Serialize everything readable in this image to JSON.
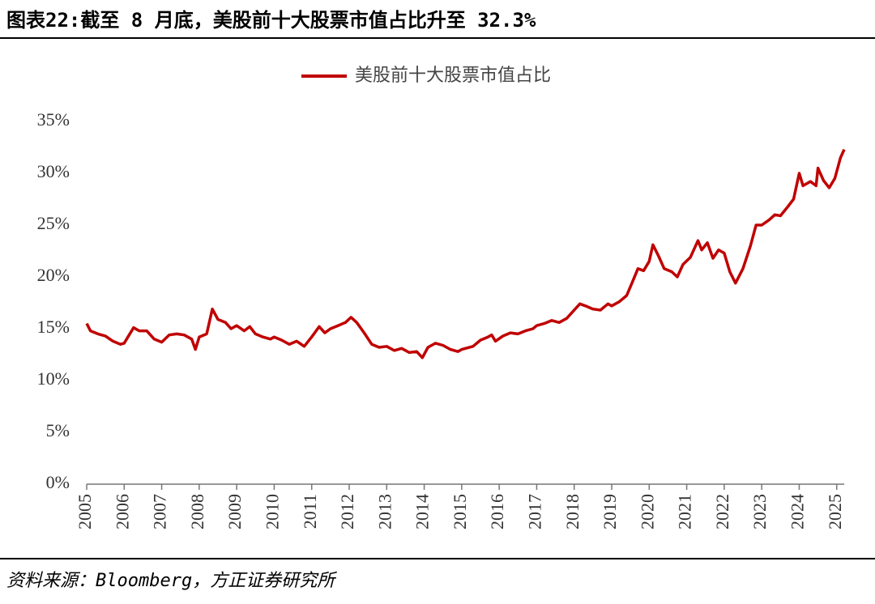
{
  "chart_data": {
    "type": "line",
    "title": "图表22:截至 8 月底，美股前十大股票市值占比升至 32.3%",
    "source": "资料来源：Bloomberg，方正证券研究所",
    "xlim": [
      2005,
      2025.2
    ],
    "xticks": [
      2005,
      2006,
      2007,
      2008,
      2009,
      2010,
      2011,
      2012,
      2013,
      2014,
      2015,
      2016,
      2017,
      2018,
      2019,
      2020,
      2021,
      2022,
      2023,
      2024,
      2025
    ],
    "ylim": [
      0,
      35
    ],
    "yticks": [
      {
        "value": 0,
        "label": "0%"
      },
      {
        "value": 5,
        "label": "5%"
      },
      {
        "value": 10,
        "label": "10%"
      },
      {
        "value": 15,
        "label": "15%"
      },
      {
        "value": 20,
        "label": "20%"
      },
      {
        "value": 25,
        "label": "25%"
      },
      {
        "value": 30,
        "label": "30%"
      },
      {
        "value": 35,
        "label": "35%"
      }
    ],
    "grid": false,
    "legend": "top",
    "x": [
      2005.0,
      2005.1,
      2005.3,
      2005.5,
      2005.7,
      2005.9,
      2006.0,
      2006.1,
      2006.25,
      2006.4,
      2006.6,
      2006.8,
      2007.0,
      2007.2,
      2007.4,
      2007.6,
      2007.8,
      2007.9,
      2008.0,
      2008.2,
      2008.35,
      2008.5,
      2008.7,
      2008.85,
      2009.0,
      2009.2,
      2009.35,
      2009.5,
      2009.7,
      2009.9,
      2010.0,
      2010.2,
      2010.4,
      2010.6,
      2010.8,
      2011.0,
      2011.2,
      2011.35,
      2011.5,
      2011.7,
      2011.9,
      2012.05,
      2012.2,
      2012.4,
      2012.6,
      2012.8,
      2013.0,
      2013.2,
      2013.4,
      2013.6,
      2013.8,
      2013.95,
      2014.1,
      2014.3,
      2014.5,
      2014.7,
      2014.9,
      2015.0,
      2015.3,
      2015.5,
      2015.7,
      2015.8,
      2015.9,
      2016.1,
      2016.3,
      2016.5,
      2016.7,
      2016.9,
      2017.0,
      2017.2,
      2017.4,
      2017.6,
      2017.8,
      2018.0,
      2018.15,
      2018.3,
      2018.5,
      2018.7,
      2018.9,
      2019.0,
      2019.2,
      2019.4,
      2019.55,
      2019.7,
      2019.85,
      2020.0,
      2020.1,
      2020.25,
      2020.4,
      2020.6,
      2020.75,
      2020.9,
      2021.1,
      2021.3,
      2021.4,
      2021.55,
      2021.7,
      2021.85,
      2022.0,
      2022.15,
      2022.3,
      2022.5,
      2022.7,
      2022.85,
      2023.0,
      2023.2,
      2023.35,
      2023.5,
      2023.7,
      2023.85,
      2024.0,
      2024.1,
      2024.3,
      2024.45,
      2024.5,
      2024.65,
      2024.8,
      2024.95,
      2025.1,
      2025.2
    ],
    "series": [
      {
        "name": "美股前十大股票市值占比",
        "color": "#c00000",
        "values": [
          15.5,
          14.8,
          14.5,
          14.3,
          13.8,
          13.5,
          13.6,
          14.2,
          15.1,
          14.8,
          14.8,
          14.0,
          13.7,
          14.4,
          14.5,
          14.4,
          14.0,
          13.0,
          14.2,
          14.5,
          16.9,
          15.9,
          15.6,
          15.0,
          15.3,
          14.8,
          15.2,
          14.5,
          14.2,
          14.0,
          14.2,
          13.9,
          13.5,
          13.8,
          13.3,
          14.2,
          15.2,
          14.6,
          15.0,
          15.3,
          15.6,
          16.1,
          15.6,
          14.6,
          13.5,
          13.2,
          13.3,
          12.9,
          13.1,
          12.7,
          12.8,
          12.2,
          13.2,
          13.6,
          13.4,
          13.0,
          12.8,
          13.0,
          13.3,
          13.9,
          14.2,
          14.4,
          13.8,
          14.3,
          14.6,
          14.5,
          14.8,
          15.0,
          15.3,
          15.5,
          15.8,
          15.6,
          16.0,
          16.8,
          17.4,
          17.2,
          16.9,
          16.8,
          17.4,
          17.2,
          17.6,
          18.2,
          19.5,
          20.8,
          20.6,
          21.5,
          23.1,
          22.0,
          20.8,
          20.5,
          20.0,
          21.2,
          21.9,
          23.5,
          22.6,
          23.3,
          21.8,
          22.6,
          22.3,
          20.5,
          19.4,
          20.8,
          23.0,
          25.0,
          25.0,
          25.5,
          26.0,
          25.9,
          26.8,
          27.5,
          30.0,
          28.8,
          29.2,
          28.8,
          30.5,
          29.3,
          28.6,
          29.5,
          31.5,
          32.3
        ]
      }
    ]
  }
}
